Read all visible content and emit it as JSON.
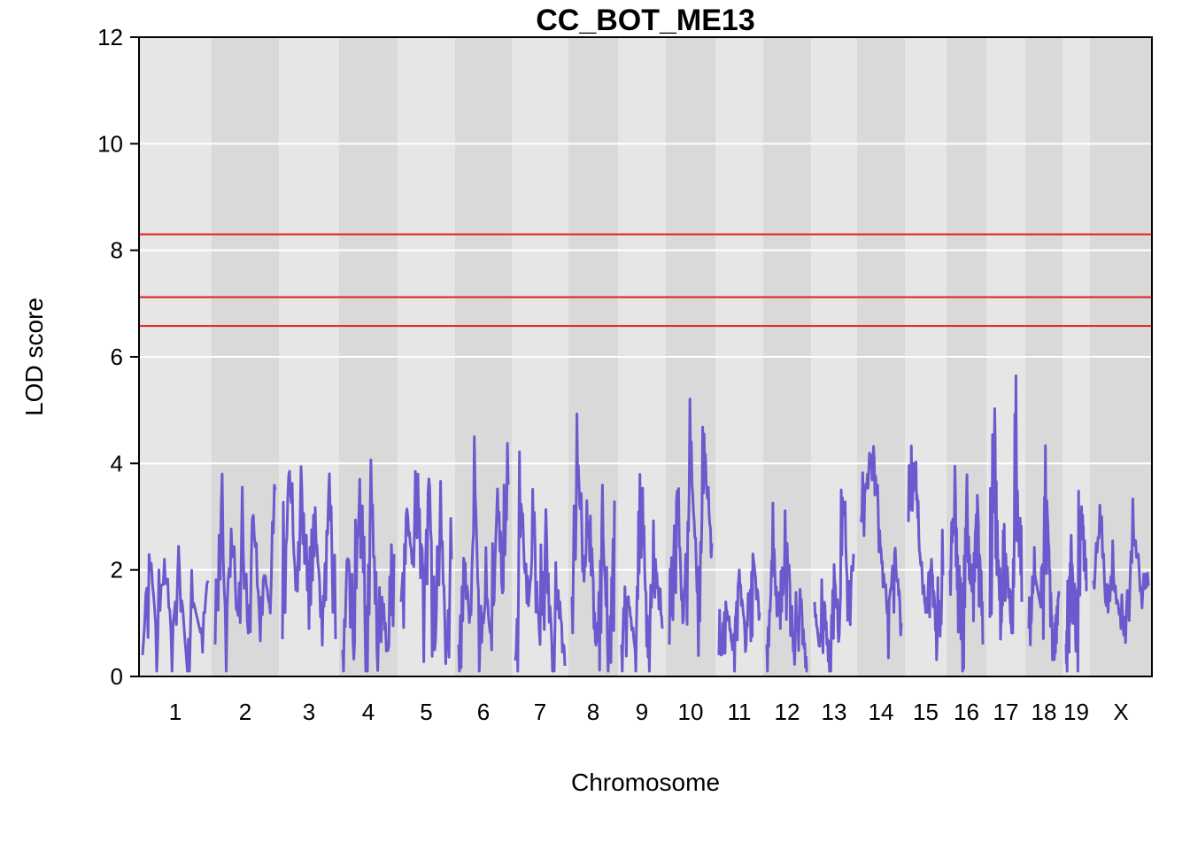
{
  "chart_data": {
    "type": "line",
    "title": "CC_BOT_ME13",
    "xlabel": "Chromosome",
    "ylabel": "LOD score",
    "ylim": [
      0,
      12
    ],
    "y_ticks": [
      "0",
      "2",
      "4",
      "6",
      "8",
      "10",
      "12"
    ],
    "grid": true,
    "series_color": "#6A5ACD",
    "threshold_color": "#E41A1C",
    "thresholds": [
      8.3,
      7.12,
      6.58
    ],
    "chromosomes": [
      {
        "label": "1",
        "peaks": [
          0.4,
          2.5,
          0.6,
          2.2,
          0.7,
          2.1,
          0.4,
          1.4,
          0.8,
          1.8
        ]
      },
      {
        "label": "2",
        "peaks": [
          0.6,
          3.4,
          0.9,
          2.9,
          1.2,
          2.6,
          0.8,
          3.1,
          1.1,
          2.0,
          1.3,
          3.5
        ]
      },
      {
        "label": "3",
        "peaks": [
          0.7,
          4.0,
          1.8,
          3.6,
          0.9,
          2.6,
          1.2,
          3.5,
          0.7
        ]
      },
      {
        "label": "4",
        "peaks": [
          0.5,
          2.4,
          0.3,
          3.7,
          0.8,
          3.4,
          0.5,
          1.6,
          0.4,
          2.3
        ]
      },
      {
        "label": "5",
        "peaks": [
          1.4,
          3.2,
          2.2,
          3.8,
          1.6,
          3.9,
          0.5,
          2.9,
          0.6,
          2.2
        ]
      },
      {
        "label": "6",
        "peaks": [
          0.6,
          2.4,
          1.0,
          3.4,
          0.4,
          1.6,
          0.5,
          3.3,
          1.4,
          3.6
        ]
      },
      {
        "label": "7",
        "peaks": [
          0.3,
          3.2,
          1.1,
          2.8,
          0.6,
          2.7,
          0.4,
          1.7,
          0.2
        ]
      },
      {
        "label": "8",
        "peaks": [
          1.5,
          3.9,
          2.0,
          3.1,
          0.5,
          3.0,
          0.2,
          3.3
        ]
      },
      {
        "label": "9",
        "peaks": [
          0.6,
          1.5,
          0.5,
          2.9,
          0.7,
          2.2,
          0.9
        ]
      },
      {
        "label": "10",
        "peaks": [
          0.6,
          3.3,
          1.1,
          4.1,
          1.6,
          3.9,
          2.5
        ]
      },
      {
        "label": "11",
        "peaks": [
          0.4,
          1.4,
          0.5,
          2.0,
          0.6,
          2.3,
          1.2
        ]
      },
      {
        "label": "12",
        "peaks": [
          0.6,
          2.2,
          0.9,
          2.5,
          0.5,
          1.4,
          0.1
        ]
      },
      {
        "label": "13",
        "peaks": [
          1.4,
          0.5,
          1.5,
          0.3,
          2.1,
          0.6,
          3.4,
          1.1,
          2.3
        ]
      },
      {
        "label": "14",
        "peaks": [
          2.9,
          3.8,
          4.1,
          2.4,
          1.2,
          2.3,
          1.0
        ]
      },
      {
        "label": "15",
        "peaks": [
          2.9,
          4.0,
          2.3,
          1.2,
          2.2,
          0.7,
          1.9
        ]
      },
      {
        "label": "16",
        "peaks": [
          2.0,
          3.3,
          0.7,
          3.3,
          1.6,
          3.4,
          0.6
        ]
      },
      {
        "label": "17",
        "peaks": [
          1.1,
          4.4,
          0.7,
          2.3,
          1.0,
          4.0,
          1.4
        ]
      },
      {
        "label": "18",
        "peaks": [
          0.9,
          1.9,
          1.3,
          3.3,
          0.7,
          1.6
        ]
      },
      {
        "label": "19",
        "peaks": [
          0.6,
          2.5,
          0.5,
          3.3,
          1.6
        ]
      },
      {
        "label": "X",
        "peaks": [
          1.8,
          2.8,
          1.1,
          1.9,
          0.9,
          1.3,
          2.7,
          1.6,
          1.7
        ]
      }
    ]
  }
}
